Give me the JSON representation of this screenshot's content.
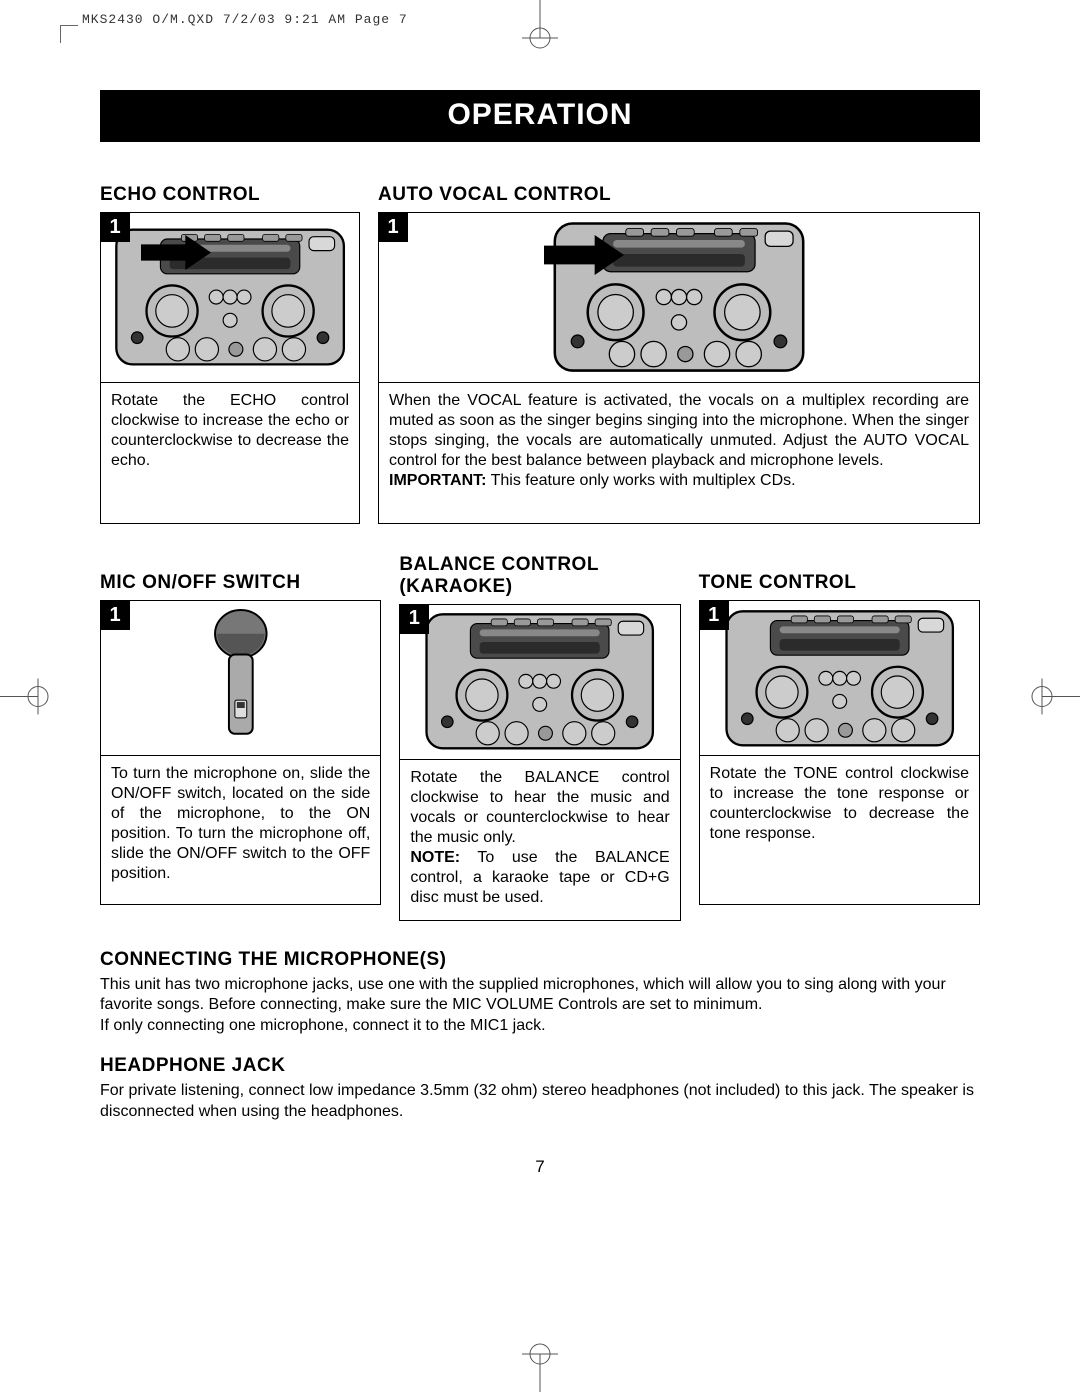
{
  "print_header": "MKS2430 O/M.QXD  7/2/03  9:21 AM  Page 7",
  "title": "OPERATION",
  "page_number": "7",
  "step_label": "1",
  "colors": {
    "black": "#000000",
    "white": "#ffffff",
    "device_gray": "#bdbdbd",
    "device_dark": "#4a4a4a",
    "arrow": "#000000"
  },
  "sections": {
    "echo": {
      "heading": "ECHO CONTROL",
      "text": "Rotate the ECHO control clockwise to increase the echo or counterclockwise to decrease the echo."
    },
    "auto_vocal": {
      "heading": "AUTO VOCAL CONTROL",
      "text_html": "When the VOCAL feature is activated, the vocals on a multiplex recording are muted as soon as the singer begins singing into the microphone. When the singer stops singing, the vocals are automatically unmuted. Adjust the AUTO VOCAL control for the best balance between playback and microphone levels.<br><b>IMPORTANT:</b> This feature only works with multiplex CDs."
    },
    "mic": {
      "heading": "MIC ON/OFF SWITCH",
      "text": "To turn the microphone on, slide the ON/OFF switch, located on the side of the microphone, to the ON position. To turn the microphone off, slide the ON/OFF switch to the OFF position."
    },
    "balance": {
      "heading_html": "BALANCE CONTROL<br>(KARAOKE)",
      "text_html": "Rotate the BALANCE control clockwise to hear the music and vocals or counterclockwise to hear the music only.<br><b>NOTE:</b> To use the BALANCE control, a karaoke tape or CD+G disc must be used."
    },
    "tone": {
      "heading": "TONE CONTROL",
      "text": "Rotate the TONE control clockwise to increase the tone response or counterclockwise to decrease the tone response."
    },
    "connecting": {
      "heading": "CONNECTING THE MICROPHONE(S)",
      "text_html": "This unit has two microphone jacks, use one with the supplied microphones, which will allow you to sing along with your favorite songs. Before connecting, make sure the MIC VOLUME Controls are set to minimum.<br>If only connecting one microphone, connect it to the MIC1 jack."
    },
    "headphone": {
      "heading": "HEADPHONE JACK",
      "text": "For private listening, connect low impedance 3.5mm (32 ohm) stereo headphones (not included) to this jack. The speaker is disconnected when using the headphones."
    }
  }
}
